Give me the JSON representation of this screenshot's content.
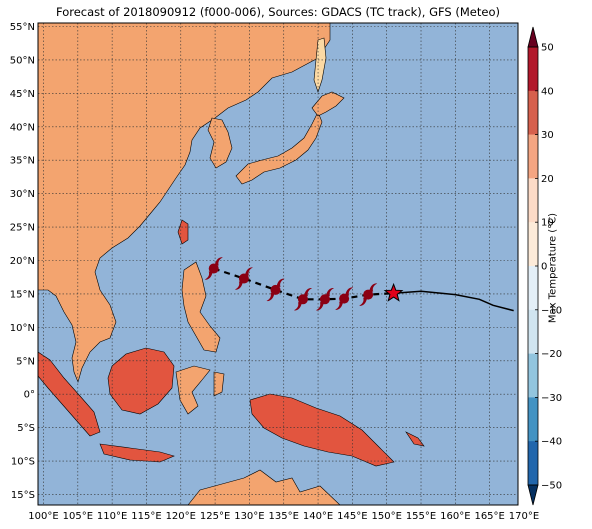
{
  "title": "Forecast of 2018090912 (f000-006), Sources: GDACS (TC track), GFS (Meteo)",
  "lon_ticks": [
    "100°E",
    "105°E",
    "110°E",
    "115°E",
    "120°E",
    "125°E",
    "130°E",
    "135°E",
    "140°E",
    "145°E",
    "150°E",
    "155°E",
    "160°E",
    "165°E",
    "170°E"
  ],
  "lat_ticks": [
    "55°N",
    "50°N",
    "45°N",
    "40°N",
    "35°N",
    "30°N",
    "25°N",
    "20°N",
    "15°N",
    "10°N",
    "5°N",
    "0°",
    "5°S",
    "10°S",
    "15°S"
  ],
  "colorbar": {
    "label": "Max Temperature (°C)",
    "ticks": [
      "50",
      "40",
      "30",
      "20",
      "10",
      "0",
      "−10",
      "−20",
      "−30",
      "−40",
      "−50"
    ],
    "colors": [
      "#67001f",
      "#b2182b",
      "#d6604d",
      "#f4a582",
      "#fddbc7",
      "#f7f7f7",
      "#d1e5f0",
      "#92c5de",
      "#4393c3",
      "#2166ac",
      "#053061"
    ]
  },
  "colors": {
    "ocean": "#92b4d8",
    "land_warm": "#f3a46f",
    "land_hot": "#e2553f",
    "land_mild": "#fbd9a4",
    "land_cool": "#fff3d3",
    "storm": "#8b0013"
  },
  "track": {
    "past": [
      [
        124.8,
        18.8
      ],
      [
        129.2,
        17.3
      ],
      [
        133.8,
        15.6
      ],
      [
        137.8,
        14.2
      ],
      [
        141.0,
        14.2
      ],
      [
        143.8,
        14.3
      ],
      [
        147.3,
        14.9
      ],
      [
        151.0,
        15.1
      ]
    ],
    "forecast": [
      [
        151.0,
        15.1
      ],
      [
        155.0,
        15.4
      ],
      [
        160.0,
        14.9
      ],
      [
        163.5,
        14.2
      ],
      [
        165.5,
        13.3
      ],
      [
        168.5,
        12.5
      ]
    ],
    "current": [
      151.0,
      15.1
    ],
    "symbols": [
      [
        124.8,
        18.8
      ],
      [
        129.2,
        17.3
      ],
      [
        133.8,
        15.6
      ],
      [
        137.8,
        14.2
      ],
      [
        141.0,
        14.2
      ],
      [
        143.8,
        14.3
      ],
      [
        147.3,
        14.9
      ]
    ]
  }
}
